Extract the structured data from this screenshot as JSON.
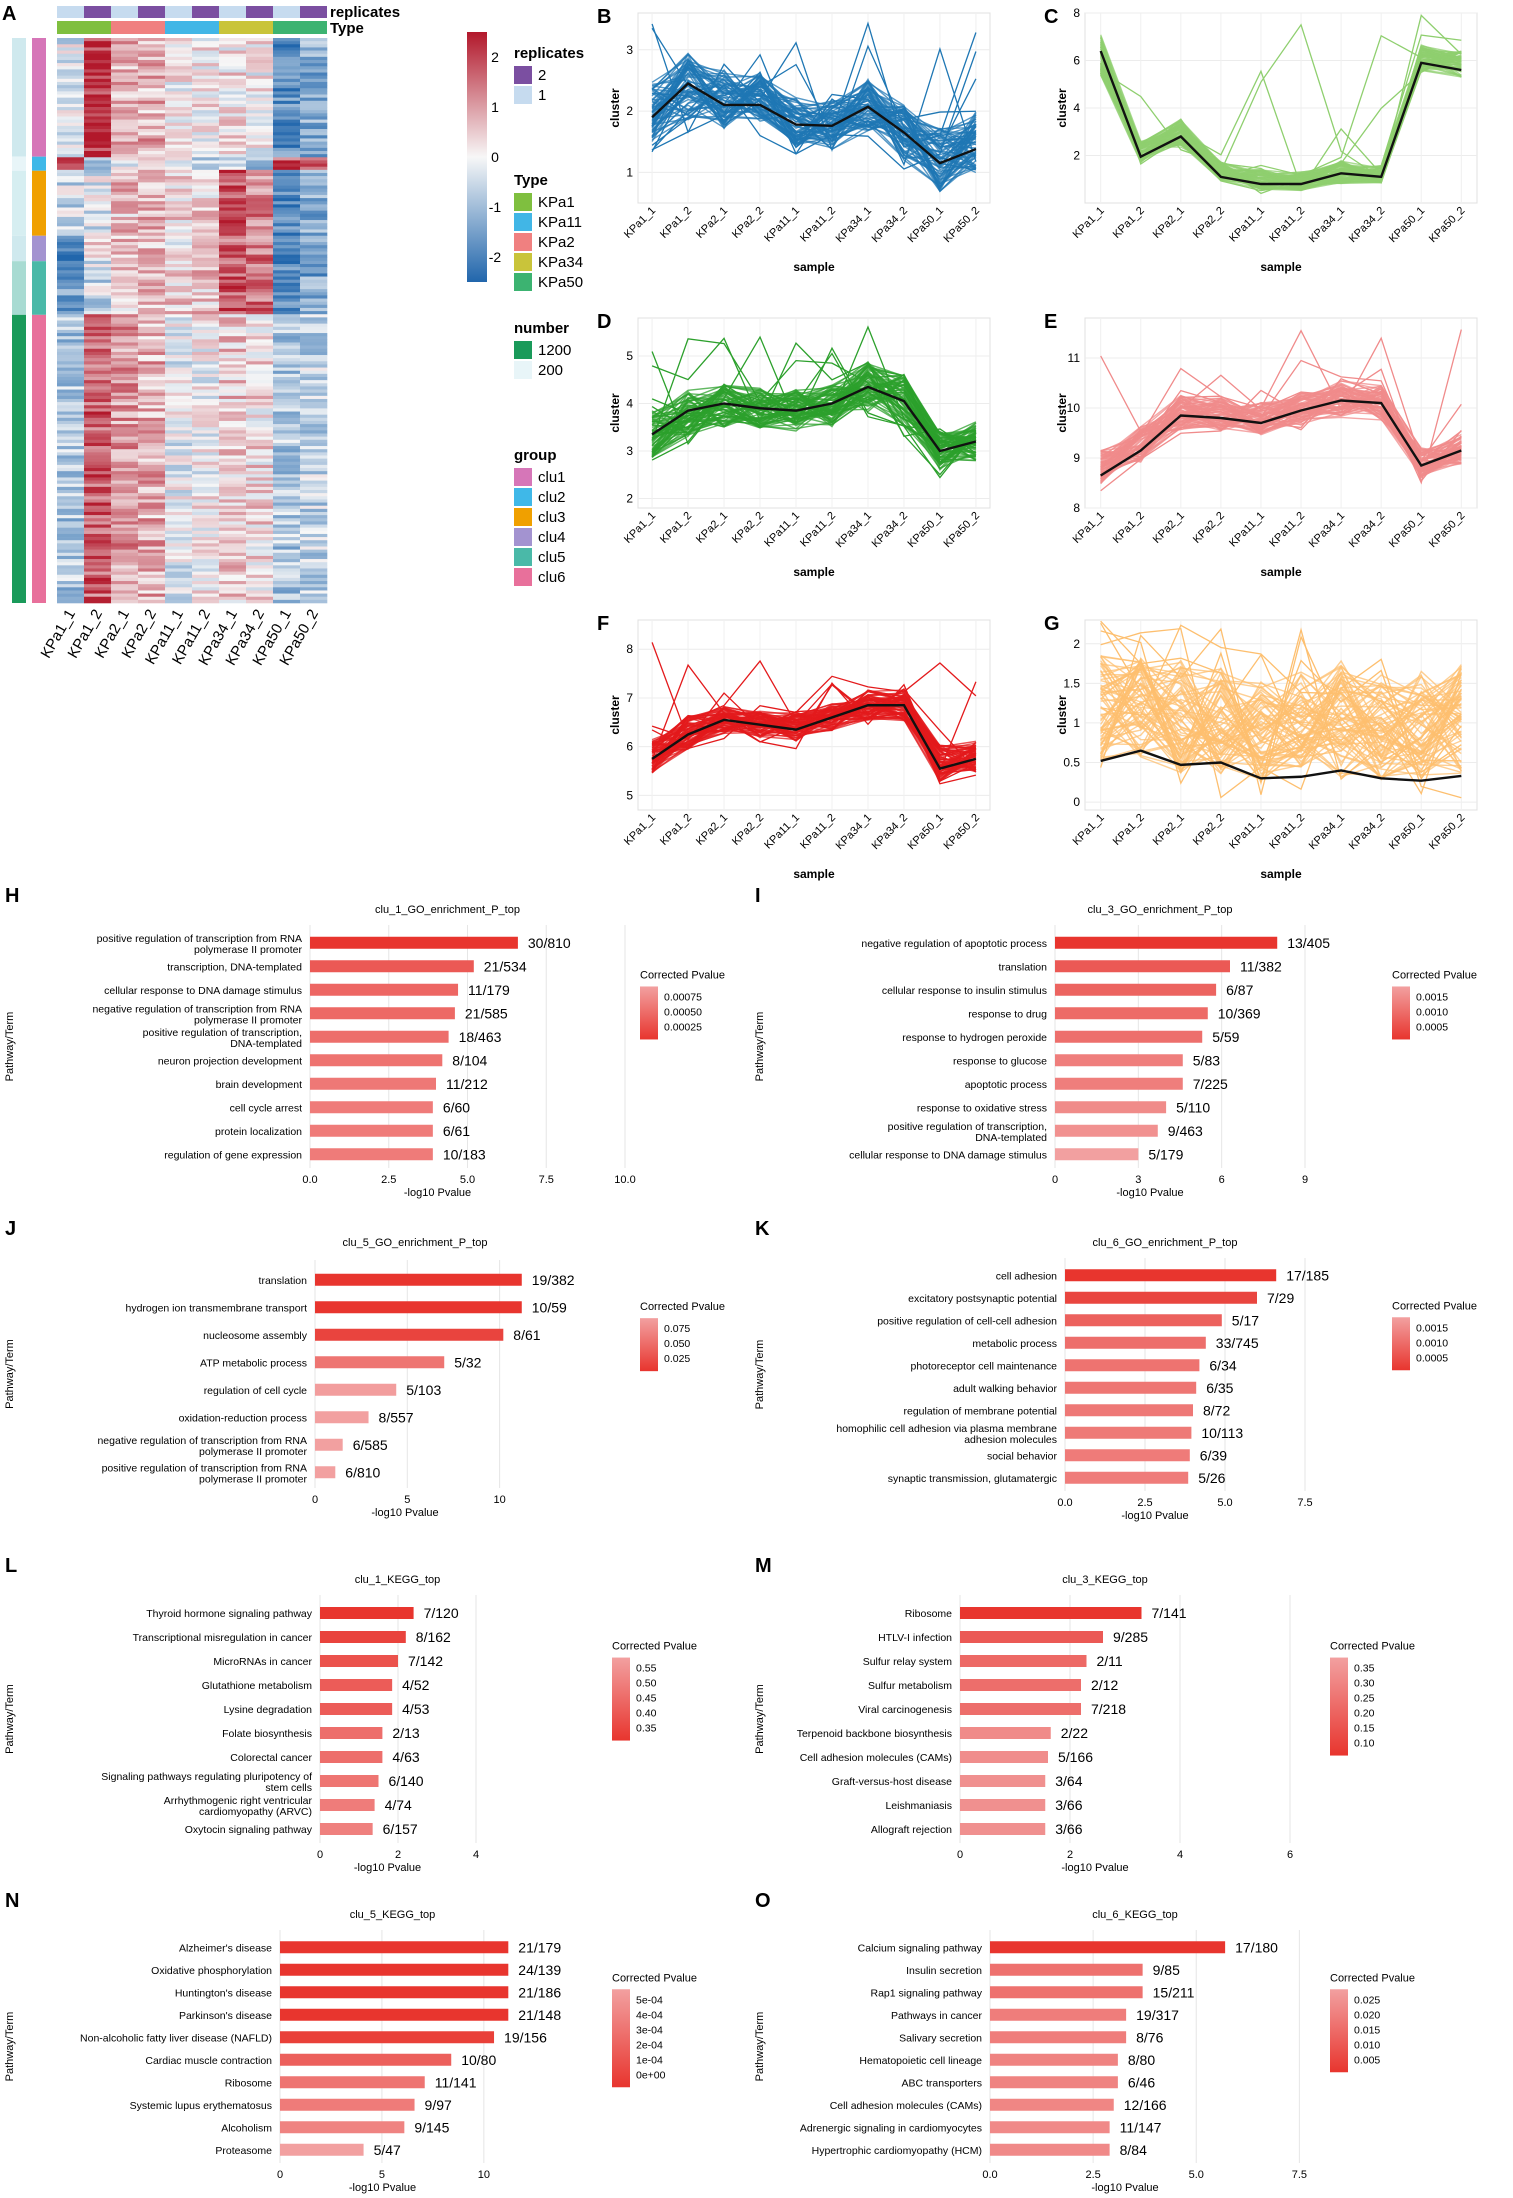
{
  "samples": [
    "KPa1_1",
    "KPa1_2",
    "KPa2_1",
    "KPa2_2",
    "KPa11_1",
    "KPa11_2",
    "KPa34_1",
    "KPa34_2",
    "KPa50_1",
    "KPa50_2"
  ],
  "heatmap": {
    "panel": "A",
    "columns": [
      "KPa1_1",
      "KPa1_2",
      "KPa2_1",
      "KPa2_2",
      "KPa11_1",
      "KPa11_2",
      "KPa34_1",
      "KPa34_2",
      "KPa50_1",
      "KPa50_2"
    ],
    "colorbar": {
      "title": "",
      "ticks": [
        "2",
        "1",
        "0",
        "-1",
        "-2"
      ],
      "low": "#2166ac",
      "mid": "#f7f7f7",
      "high": "#b2182b"
    },
    "legend_replicates": {
      "title": "replicates",
      "labels": [
        "2",
        "1"
      ],
      "colors": [
        "#7b4fa1",
        "#c6dbef"
      ]
    },
    "legend_type": {
      "title": "Type",
      "labels": [
        "KPa1",
        "KPa11",
        "KPa2",
        "KPa34",
        "KPa50"
      ],
      "colors": [
        "#7fbf3f",
        "#41b6e6",
        "#f08080",
        "#c9c43a",
        "#3cb371"
      ]
    },
    "legend_number": {
      "title": "number",
      "labels": [
        "1200",
        "200"
      ],
      "colors": [
        "#1a9a5a",
        "#e8f5f8"
      ]
    },
    "legend_group": {
      "title": "group",
      "labels": [
        "clu1",
        "clu2",
        "clu3",
        "clu4",
        "clu5",
        "clu6"
      ],
      "colors": [
        "#d676b8",
        "#3fb8e8",
        "#f0a000",
        "#a393d0",
        "#4ab9a8",
        "#e8709b"
      ]
    },
    "top_labels": [
      "replicates",
      "Type"
    ]
  },
  "chart_data": [
    {
      "panel": "B",
      "type": "line",
      "xlabel": "sample",
      "ylabel": "cluster",
      "color": "#1f77b4",
      "ylim": [
        0.5,
        3.6
      ],
      "yticks": [
        1,
        2,
        3
      ],
      "mean": [
        1.9,
        2.45,
        2.1,
        2.1,
        1.78,
        1.76,
        2.07,
        1.65,
        1.15,
        1.38
      ],
      "lower": [
        1.2,
        1.6,
        1.5,
        1.6,
        1.2,
        1.2,
        1.5,
        1.0,
        0.45,
        0.75
      ],
      "upper": [
        2.7,
        3.2,
        2.9,
        2.8,
        2.4,
        2.35,
        2.7,
        2.3,
        2.0,
        2.25
      ],
      "outlier_max": 3.5
    },
    {
      "panel": "C",
      "type": "line",
      "xlabel": "sample",
      "ylabel": "cluster",
      "color": "#8fcf6f",
      "ylim": [
        0,
        8
      ],
      "yticks": [
        2,
        4,
        6,
        8
      ],
      "mean": [
        6.4,
        1.95,
        2.8,
        1.1,
        0.8,
        0.8,
        1.25,
        1.1,
        5.9,
        5.6
      ],
      "lower": [
        5.0,
        1.5,
        2.1,
        0.75,
        0.4,
        0.35,
        0.6,
        0.7,
        5.3,
        5.0
      ],
      "upper": [
        7.5,
        2.8,
        3.8,
        1.9,
        1.6,
        1.5,
        2.0,
        1.7,
        6.9,
        6.7
      ],
      "outlier_max": 7.9
    },
    {
      "panel": "D",
      "type": "line",
      "xlabel": "sample",
      "ylabel": "cluster",
      "color": "#2ca02c",
      "ylim": [
        1.8,
        5.8
      ],
      "yticks": [
        2,
        3,
        4,
        5
      ],
      "mean": [
        3.35,
        3.85,
        4.0,
        3.9,
        3.85,
        4.0,
        4.35,
        4.05,
        3.0,
        3.2
      ],
      "lower": [
        2.6,
        3.1,
        3.3,
        3.3,
        3.2,
        3.3,
        3.6,
        3.3,
        2.4,
        2.6
      ],
      "upper": [
        4.1,
        4.5,
        4.6,
        4.5,
        4.5,
        4.6,
        5.1,
        4.9,
        3.6,
        3.8
      ],
      "outlier_max": 5.7
    },
    {
      "panel": "E",
      "type": "line",
      "xlabel": "sample",
      "ylabel": "cluster",
      "color": "#f08b8b",
      "ylim": [
        8,
        11.8
      ],
      "yticks": [
        8,
        9,
        10,
        11
      ],
      "mean": [
        8.65,
        9.15,
        9.85,
        9.8,
        9.7,
        9.95,
        10.15,
        10.1,
        8.85,
        9.15
      ],
      "lower": [
        8.3,
        8.75,
        9.4,
        9.4,
        9.3,
        9.5,
        9.65,
        9.6,
        8.45,
        8.75
      ],
      "upper": [
        9.3,
        9.8,
        10.4,
        10.35,
        10.25,
        10.45,
        10.7,
        10.6,
        9.35,
        9.6
      ],
      "outlier_max": 11.6
    },
    {
      "panel": "F",
      "type": "line",
      "xlabel": "sample",
      "ylabel": "cluster",
      "color": "#e31a1c",
      "ylim": [
        4.7,
        8.6
      ],
      "yticks": [
        5,
        6,
        7,
        8
      ],
      "mean": [
        5.75,
        6.25,
        6.55,
        6.45,
        6.35,
        6.6,
        6.85,
        6.85,
        5.55,
        5.75
      ],
      "lower": [
        5.3,
        5.8,
        6.15,
        6.05,
        5.95,
        6.2,
        6.4,
        6.4,
        5.1,
        5.3
      ],
      "upper": [
        6.3,
        6.8,
        6.95,
        6.85,
        6.85,
        7.0,
        7.3,
        7.3,
        6.2,
        6.3
      ],
      "outlier_max": 8.45
    },
    {
      "panel": "G",
      "type": "line",
      "xlabel": "sample",
      "ylabel": "cluster",
      "color": "#fdbf6f",
      "ylim": [
        -0.1,
        2.3
      ],
      "yticks": [
        0.0,
        0.5,
        1.0,
        1.5,
        2.0
      ],
      "mean": [
        0.52,
        0.65,
        0.47,
        0.5,
        0.3,
        0.32,
        0.4,
        0.3,
        0.27,
        0.33
      ],
      "lower": [
        0.25,
        0.3,
        0.05,
        0.0,
        0.0,
        0.0,
        0.0,
        0.0,
        0.0,
        0.0
      ],
      "upper": [
        2.15,
        2.1,
        2.1,
        2.0,
        1.8,
        2.0,
        2.1,
        1.9,
        1.95,
        2.05
      ],
      "outlier_max": 2.3
    },
    {
      "panel": "H",
      "type": "bar",
      "title": "clu_1_GO_enrichment_P_top",
      "xlabel": "-log10 Pvalue",
      "ylabel": "Pathway/Term",
      "xlim": [
        0,
        10
      ],
      "xticks": [
        0.0,
        2.5,
        5.0,
        7.5,
        10.0
      ],
      "categories": [
        "positive regulation of transcription from RNA polymerase II promoter",
        "transcription, DNA-templated",
        "cellular response to DNA damage stimulus",
        "negative regulation of transcription from RNA polymerase II promoter",
        "positive regulation of transcription, DNA-templated",
        "neuron projection development",
        "brain development",
        "cell cycle arrest",
        "protein localization",
        "regulation of gene expression"
      ],
      "values": [
        6.6,
        5.2,
        4.7,
        4.6,
        4.4,
        4.2,
        4.0,
        3.9,
        3.9,
        3.9
      ],
      "ratios": [
        "30/810",
        "21/534",
        "11/179",
        "21/585",
        "18/463",
        "8/104",
        "11/212",
        "6/60",
        "6/61",
        "10/183"
      ],
      "legend_title": "Corrected Pvalue",
      "legend_ticks": [
        "0.00075",
        "0.00050",
        "0.00025"
      ]
    },
    {
      "panel": "I",
      "type": "bar",
      "title": "clu_3_GO_enrichment_P_top",
      "xlabel": "-log10 Pvalue",
      "ylabel": "Pathway/Term",
      "xlim": [
        0,
        9
      ],
      "xticks": [
        0,
        3,
        6,
        9
      ],
      "categories": [
        "negative regulation of apoptotic process",
        "translation",
        "cellular response to insulin stimulus",
        "response to drug",
        "response to hydrogen peroxide",
        "response to glucose",
        "apoptotic process",
        "response to oxidative stress",
        "positive regulation of transcription, DNA-templated",
        "cellular response to DNA damage stimulus"
      ],
      "values": [
        8.0,
        6.3,
        5.8,
        5.5,
        5.3,
        4.6,
        4.6,
        4.0,
        3.7,
        3.0
      ],
      "ratios": [
        "13/405",
        "11/382",
        "6/87",
        "10/369",
        "5/59",
        "5/83",
        "7/225",
        "5/110",
        "9/463",
        "5/179"
      ],
      "legend_title": "Corrected Pvalue",
      "legend_ticks": [
        "0.0015",
        "0.0010",
        "0.0005"
      ]
    },
    {
      "panel": "J",
      "type": "bar",
      "title": "clu_5_GO_enrichment_P_top",
      "xlabel": "-log10 Pvalue",
      "ylabel": "Pathway/Term",
      "xlim": [
        0,
        13
      ],
      "xticks": [
        0,
        5,
        10
      ],
      "categories": [
        "translation",
        "hydrogen ion transmembrane transport",
        "nucleosome assembly",
        "ATP metabolic process",
        "regulation of cell cycle",
        "oxidation-reduction process",
        "negative regulation of transcription from RNA polymerase II promoter",
        "positive regulation of transcription from RNA polymerase II promoter"
      ],
      "values": [
        11.2,
        11.2,
        10.2,
        7.0,
        4.4,
        2.9,
        1.5,
        1.1
      ],
      "ratios": [
        "19/382",
        "10/59",
        "8/61",
        "5/32",
        "5/103",
        "8/557",
        "6/585",
        "6/810"
      ],
      "legend_title": "Corrected Pvalue",
      "legend_ticks": [
        "0.075",
        "0.050",
        "0.025"
      ]
    },
    {
      "panel": "K",
      "type": "bar",
      "title": "clu_6_GO_enrichment_P_top",
      "xlabel": "-log10 Pvalue",
      "ylabel": "Pathway/Term",
      "xlim": [
        0,
        7.5
      ],
      "xticks": [
        0.0,
        2.5,
        5.0,
        7.5
      ],
      "categories": [
        "cell adhesion",
        "excitatory postsynaptic potential",
        "positive regulation of cell-cell adhesion",
        "metabolic process",
        "photoreceptor cell maintenance",
        "adult walking behavior",
        "regulation of membrane potential",
        "homophilic cell adhesion via plasma membrane adhesion molecules",
        "social behavior",
        "synaptic transmission, glutamatergic"
      ],
      "values": [
        6.6,
        6.0,
        4.9,
        4.4,
        4.2,
        4.1,
        4.0,
        3.95,
        3.9,
        3.85
      ],
      "ratios": [
        "17/185",
        "7/29",
        "5/17",
        "33/745",
        "6/34",
        "6/35",
        "8/72",
        "10/113",
        "6/39",
        "5/26"
      ],
      "legend_title": "Corrected Pvalue",
      "legend_ticks": [
        "0.0015",
        "0.0010",
        "0.0005"
      ]
    },
    {
      "panel": "L",
      "type": "bar",
      "title": "clu_1_KEGG_top",
      "xlabel": "-log10 Pvalue",
      "ylabel": "Pathway/Term",
      "xlim": [
        0,
        5
      ],
      "xticks": [
        0,
        2,
        4
      ],
      "categories": [
        "Thyroid hormone signaling pathway",
        "Transcriptional misregulation in cancer",
        "MicroRNAs in cancer",
        "Glutathione metabolism",
        "Lysine degradation",
        "Folate biosynthesis",
        "Colorectal cancer",
        "Signaling pathways regulating pluripotency of stem cells",
        "Arrhythmogenic right ventricular cardiomyopathy (ARVC)",
        "Oxytocin signaling pathway"
      ],
      "values": [
        2.4,
        2.2,
        2.0,
        1.85,
        1.85,
        1.6,
        1.6,
        1.5,
        1.4,
        1.35
      ],
      "ratios": [
        "7/120",
        "8/162",
        "7/142",
        "4/52",
        "4/53",
        "2/13",
        "4/63",
        "6/140",
        "4/74",
        "6/157"
      ],
      "legend_title": "Corrected Pvalue",
      "legend_ticks": [
        "0.55",
        "0.50",
        "0.45",
        "0.40",
        "0.35"
      ]
    },
    {
      "panel": "M",
      "type": "bar",
      "title": "clu_3_KEGG_top",
      "xlabel": "-log10 Pvalue",
      "ylabel": "Pathway/Term",
      "xlim": [
        0,
        6
      ],
      "xticks": [
        0,
        2,
        4,
        6
      ],
      "categories": [
        "Ribosome",
        "HTLV-I infection",
        "Sulfur relay system",
        "Sulfur metabolism",
        "Viral carcinogenesis",
        "Terpenoid backbone biosynthesis",
        "Cell adhesion molecules (CAMs)",
        "Graft-versus-host disease",
        "Leishmaniasis",
        "Allograft rejection"
      ],
      "values": [
        3.3,
        2.6,
        2.3,
        2.2,
        2.2,
        1.65,
        1.6,
        1.55,
        1.55,
        1.55
      ],
      "ratios": [
        "7/141",
        "9/285",
        "2/11",
        "2/12",
        "7/218",
        "2/22",
        "5/166",
        "3/64",
        "3/66",
        "3/66"
      ],
      "legend_title": "Corrected Pvalue",
      "legend_ticks": [
        "0.35",
        "0.30",
        "0.25",
        "0.20",
        "0.15",
        "0.10"
      ]
    },
    {
      "panel": "N",
      "type": "bar",
      "title": "clu_5_KEGG_top",
      "xlabel": "-log10 Pvalue",
      "ylabel": "Pathway/Term",
      "xlim": [
        0,
        13
      ],
      "xticks": [
        0,
        5,
        10
      ],
      "categories": [
        "Alzheimer's disease",
        "Oxidative phosphorylation",
        "Huntington's disease",
        "Parkinson's disease",
        "Non-alcoholic fatty liver disease (NAFLD)",
        "Cardiac muscle contraction",
        "Ribosome",
        "Systemic lupus erythematosus",
        "Alcoholism",
        "Proteasome"
      ],
      "values": [
        11.2,
        11.2,
        11.2,
        11.2,
        10.5,
        8.4,
        7.1,
        6.6,
        6.1,
        4.1
      ],
      "ratios": [
        "21/179",
        "24/139",
        "21/186",
        "21/148",
        "19/156",
        "10/80",
        "11/141",
        "9/97",
        "9/145",
        "5/47"
      ],
      "legend_title": "Corrected Pvalue",
      "legend_ticks": [
        "5e-04",
        "4e-04",
        "3e-04",
        "2e-04",
        "1e-04",
        "0e+00"
      ]
    },
    {
      "panel": "O",
      "type": "bar",
      "title": "clu_6_KEGG_top",
      "xlabel": "-log10 Pvalue",
      "ylabel": "Pathway/Term",
      "xlim": [
        0,
        8
      ],
      "xticks": [
        0.0,
        2.5,
        5.0,
        7.5
      ],
      "categories": [
        "Calcium signaling pathway",
        "Insulin secretion",
        "Rap1 signaling pathway",
        "Pathways in cancer",
        "Salivary secretion",
        "Hematopoietic cell lineage",
        "ABC transporters",
        "Cell adhesion molecules (CAMs)",
        "Adrenergic signaling in cardiomyocytes",
        "Hypertrophic cardiomyopathy (HCM)"
      ],
      "values": [
        5.7,
        3.7,
        3.7,
        3.3,
        3.3,
        3.1,
        3.1,
        3.0,
        2.9,
        2.9
      ],
      "ratios": [
        "17/180",
        "9/85",
        "15/211",
        "19/317",
        "8/76",
        "8/80",
        "6/46",
        "12/166",
        "11/147",
        "8/84"
      ],
      "legend_title": "Corrected Pvalue",
      "legend_ticks": [
        "0.025",
        "0.020",
        "0.015",
        "0.010",
        "0.005"
      ]
    }
  ]
}
